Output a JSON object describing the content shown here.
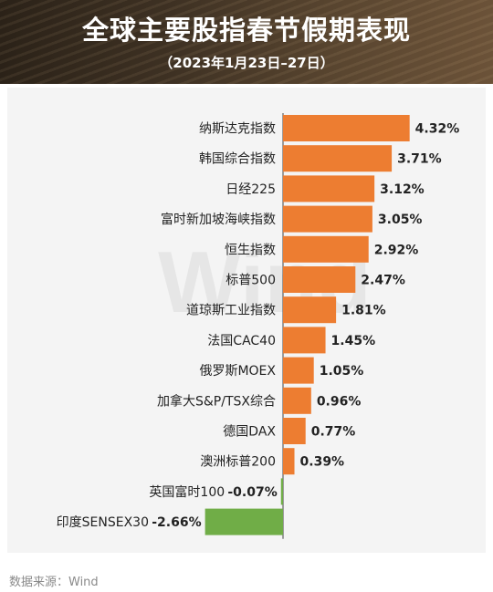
{
  "header": {
    "title": "全球主要股指春节假期表现",
    "subtitle": "（2023年1月23日–27日）"
  },
  "watermark": "Wind",
  "source": "数据来源：Wind",
  "colors": {
    "positive": "#ED7D31",
    "negative": "#70AD47",
    "banner": "#3e3123"
  },
  "chart_data": {
    "type": "bar",
    "orientation": "horizontal",
    "categories": [
      "纳斯达克指数",
      "韩国综合指数",
      "日经225",
      "富时新加坡海峡指数",
      "恒生指数",
      "标普500",
      "道琼斯工业指数",
      "法国CAC40",
      "俄罗斯MOEX",
      "加拿大S&P/TSX综合",
      "德国DAX",
      "澳洲标普200",
      "英国富时100",
      "印度SENSEX30"
    ],
    "values": [
      4.32,
      3.71,
      3.12,
      3.05,
      2.92,
      2.47,
      1.81,
      1.45,
      1.05,
      0.96,
      0.77,
      0.39,
      -0.07,
      -2.66
    ],
    "labels": [
      "4.32%",
      "3.71%",
      "3.12%",
      "3.05%",
      "2.92%",
      "2.47%",
      "1.81%",
      "1.45%",
      "1.05%",
      "0.96%",
      "0.77%",
      "0.39%",
      "-0.07%",
      "-2.66%"
    ],
    "title": "全球主要股指春节假期表现",
    "subtitle": "（2023年1月23日–27日）",
    "xlim": [
      -2.66,
      4.32
    ],
    "grid": false,
    "legend": "none"
  }
}
